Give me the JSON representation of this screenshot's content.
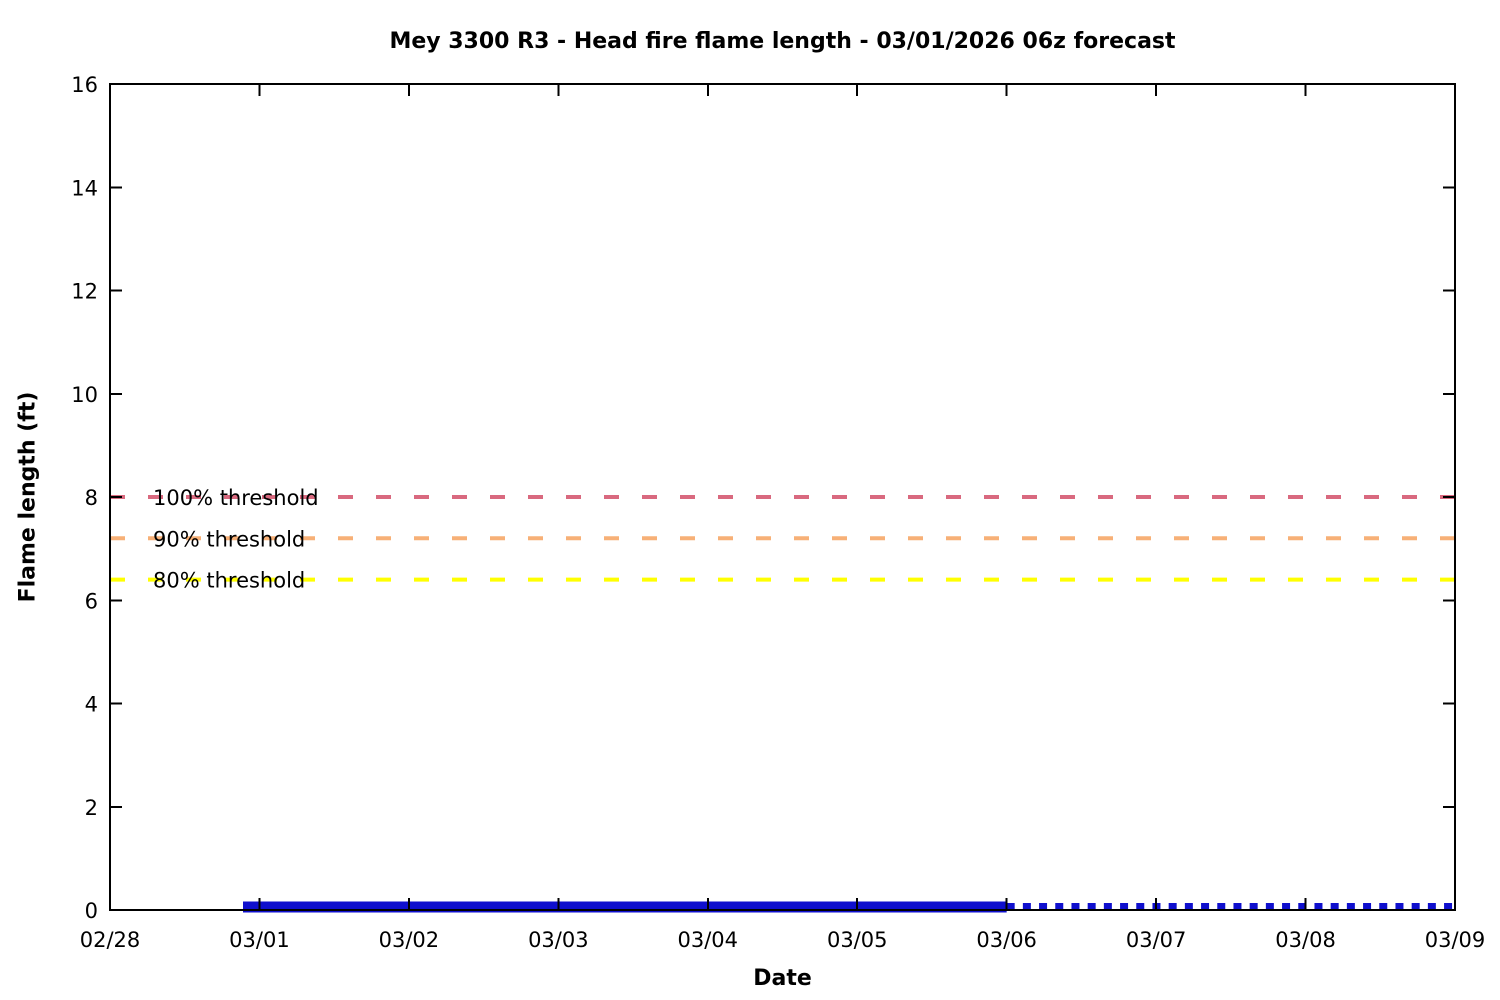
{
  "chart_data": {
    "type": "line",
    "title": "Mey 3300 R3 - Head fire flame length - 03/01/2026 06z forecast",
    "xlabel": "Date",
    "ylabel": "Flame length (ft)",
    "x_tick_labels": [
      "02/28",
      "03/01",
      "03/02",
      "03/03",
      "03/04",
      "03/05",
      "03/06",
      "03/07",
      "03/08",
      "03/09"
    ],
    "x_range_days": [
      0,
      9
    ],
    "ylim": [
      0,
      16
    ],
    "y_ticks": [
      0,
      2,
      4,
      6,
      8,
      10,
      12,
      14,
      16
    ],
    "grid": false,
    "legend": "none",
    "border": "full-box-mirrored-ticks",
    "thresholds": [
      {
        "label": "100% threshold",
        "value": 8.0,
        "color": "#d9697f"
      },
      {
        "label": "90% threshold",
        "value": 7.2,
        "color": "#f7b077"
      },
      {
        "label": "80% threshold",
        "value": 6.4,
        "color": "#ffff00"
      }
    ],
    "series": [
      {
        "name": "head-fire-flame-length-forecast-solid",
        "style": "solid",
        "color": "#0f0fcd",
        "value_ft": 0,
        "x_start_day": 0.89,
        "x_end_day": 6.0
      },
      {
        "name": "head-fire-flame-length-forecast-dotted",
        "style": "dotted",
        "color": "#0f0fcd",
        "value_ft": 0,
        "x_start_day": 6.0,
        "x_end_day": 9.0
      }
    ]
  },
  "colors": {
    "axis": "#000000",
    "text": "#000000",
    "background": "#ffffff",
    "threshold_100": "#d9697f",
    "threshold_90": "#f7b077",
    "threshold_80": "#ffff00",
    "forecast_line": "#0f0fcd"
  }
}
